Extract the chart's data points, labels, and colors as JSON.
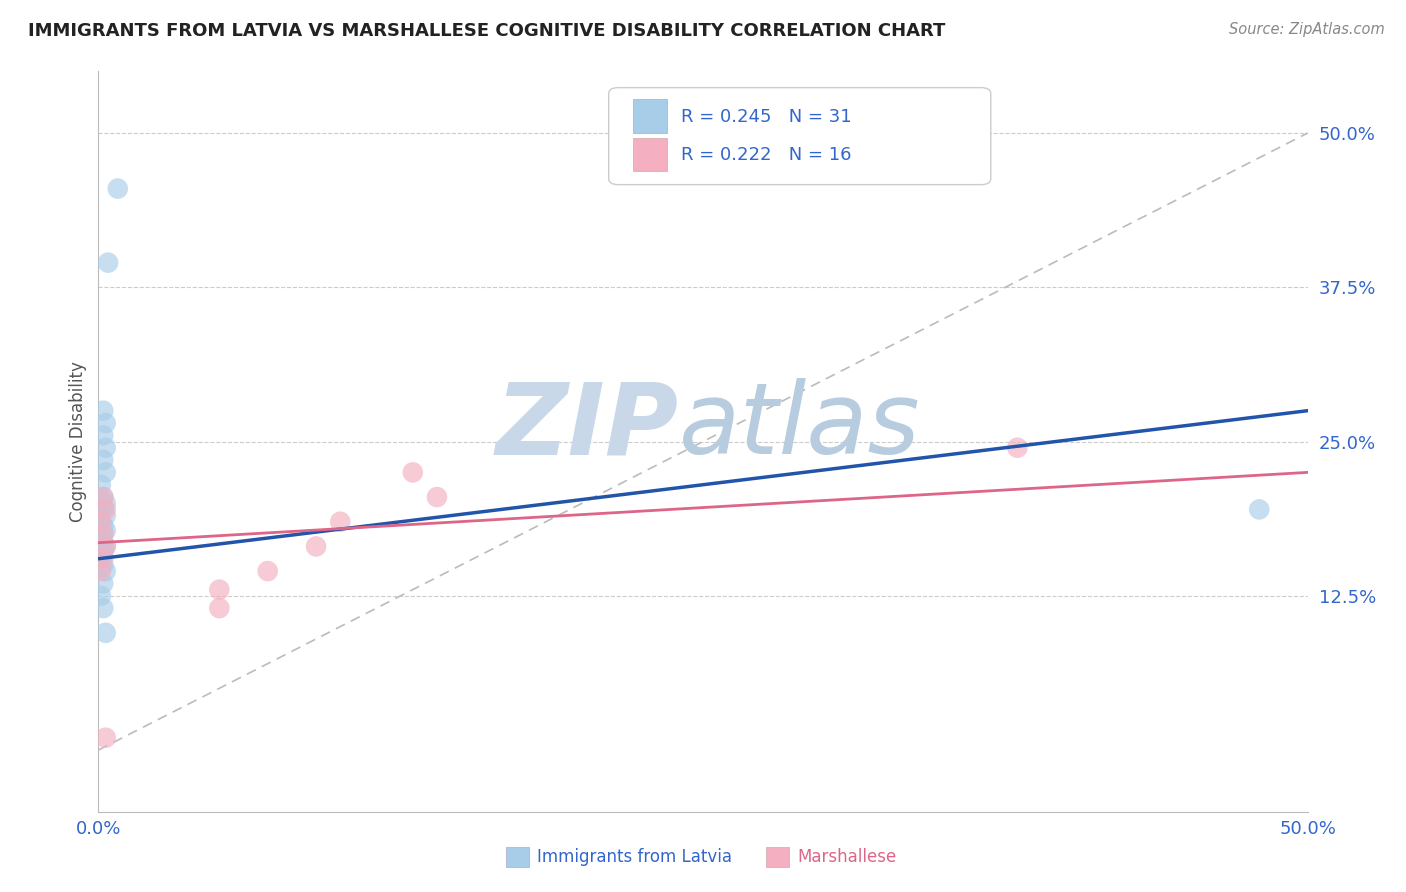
{
  "title": "IMMIGRANTS FROM LATVIA VS MARSHALLESE COGNITIVE DISABILITY CORRELATION CHART",
  "source": "Source: ZipAtlas.com",
  "xlabel_blue": "Immigrants from Latvia",
  "xlabel_pink": "Marshallese",
  "ylabel": "Cognitive Disability",
  "xlim": [
    0.0,
    0.5
  ],
  "ylim": [
    -0.05,
    0.55
  ],
  "xtick_pos": [
    0.0,
    0.125,
    0.25,
    0.375,
    0.5
  ],
  "xtick_labels": [
    "0.0%",
    "",
    "",
    "",
    "50.0%"
  ],
  "ytick_labels_right": [
    "50.0%",
    "37.5%",
    "25.0%",
    "12.5%"
  ],
  "ytick_positions_right": [
    0.5,
    0.375,
    0.25,
    0.125
  ],
  "legend_R1": "0.245",
  "legend_N1": "31",
  "legend_R2": "0.222",
  "legend_N2": "16",
  "watermark_zip": "ZIP",
  "watermark_atlas": "atlas",
  "blue_scatter_x": [
    0.008,
    0.004,
    0.002,
    0.003,
    0.002,
    0.003,
    0.002,
    0.003,
    0.001,
    0.002,
    0.003,
    0.002,
    0.003,
    0.001,
    0.002,
    0.003,
    0.002,
    0.001,
    0.002,
    0.003,
    0.002,
    0.002,
    0.001,
    0.002,
    0.003,
    0.002,
    0.001,
    0.002,
    0.003,
    0.48,
    0.002
  ],
  "blue_scatter_y": [
    0.455,
    0.395,
    0.275,
    0.265,
    0.255,
    0.245,
    0.235,
    0.225,
    0.215,
    0.205,
    0.2,
    0.195,
    0.19,
    0.185,
    0.182,
    0.178,
    0.175,
    0.172,
    0.168,
    0.165,
    0.162,
    0.158,
    0.155,
    0.15,
    0.145,
    0.135,
    0.125,
    0.115,
    0.095,
    0.195,
    0.165
  ],
  "pink_scatter_x": [
    0.002,
    0.003,
    0.001,
    0.002,
    0.003,
    0.002,
    0.001,
    0.13,
    0.14,
    0.1,
    0.09,
    0.07,
    0.05,
    0.38,
    0.05,
    0.003
  ],
  "pink_scatter_y": [
    0.205,
    0.195,
    0.185,
    0.175,
    0.165,
    0.155,
    0.145,
    0.225,
    0.205,
    0.185,
    0.165,
    0.145,
    0.13,
    0.245,
    0.115,
    0.01
  ],
  "blue_line_x": [
    0.0,
    0.5
  ],
  "blue_line_y": [
    0.155,
    0.275
  ],
  "pink_line_x": [
    0.0,
    0.5
  ],
  "pink_line_y": [
    0.168,
    0.225
  ],
  "grey_dashed_line_x": [
    0.0,
    0.5
  ],
  "grey_dashed_line_y": [
    0.0,
    0.5
  ],
  "bg_color": "#ffffff",
  "blue_color": "#a8cde8",
  "pink_color": "#f4b0c0",
  "blue_line_color": "#2255aa",
  "pink_line_color": "#dd6688",
  "grid_color": "#cccccc",
  "title_color": "#222222",
  "axis_label_color": "#555555",
  "legend_value_color": "#3366cc",
  "watermark_color_zip": "#c8d8e8",
  "watermark_color_atlas": "#b8cce0"
}
